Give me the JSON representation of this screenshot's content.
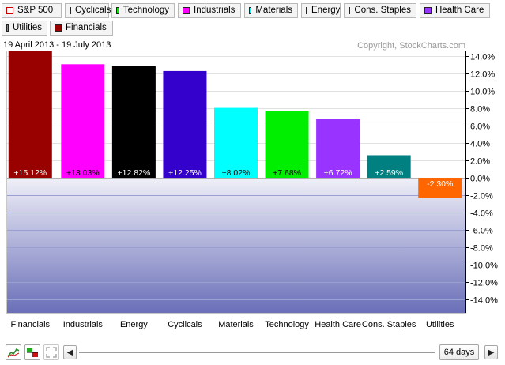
{
  "legend": [
    {
      "label": "S&P 500",
      "color": "#ffffff",
      "border": "#cc0000"
    },
    {
      "label": "Cyclicals",
      "color": "#3300cc",
      "border": "#222222"
    },
    {
      "label": "Technology",
      "color": "#00ee00",
      "border": "#222222"
    },
    {
      "label": "Industrials",
      "color": "#ff00ff",
      "border": "#222222"
    },
    {
      "label": "Materials",
      "color": "#00ffff",
      "border": "#222222"
    },
    {
      "label": "Energy",
      "color": "#000000",
      "border": "#222222"
    },
    {
      "label": "Cons. Staples",
      "color": "#008080",
      "border": "#222222"
    },
    {
      "label": "Health Care",
      "color": "#9933ff",
      "border": "#222222"
    },
    {
      "label": "Utilities",
      "color": "#ff6600",
      "border": "#222222"
    },
    {
      "label": "Financials",
      "color": "#990000",
      "border": "#222222"
    }
  ],
  "chart_data": {
    "type": "bar",
    "title": "",
    "date_range": "19 April 2013 - 19 July 2013",
    "copyright": "Copyright, StockCharts.com",
    "xlabel": "",
    "ylabel": "",
    "ylim": [
      -15.5,
      14.6
    ],
    "yticks": [
      14,
      12,
      10,
      8,
      6,
      4,
      2,
      0,
      -2,
      -4,
      -6,
      -8,
      -10,
      -12,
      -14
    ],
    "ytick_labels": [
      "14.0%",
      "12.0%",
      "10.0%",
      "8.0%",
      "6.0%",
      "4.0%",
      "2.0%",
      "0.0%",
      "-2.0%",
      "-4.0%",
      "-6.0%",
      "-8.0%",
      "-10.0%",
      "-12.0%",
      "-14.0%"
    ],
    "categories": [
      "Financials",
      "Industrials",
      "Energy",
      "Cyclicals",
      "Materials",
      "Technology",
      "Health Care",
      "Cons. Staples",
      "Utilities"
    ],
    "values": [
      15.12,
      13.03,
      12.82,
      12.25,
      8.02,
      7.68,
      6.72,
      2.59,
      -2.3
    ],
    "value_labels": [
      "+15.12%",
      "+13.03%",
      "+12.82%",
      "+12.25%",
      "+8.02%",
      "+7.68%",
      "+6.72%",
      "+2.59%",
      "-2.30%"
    ],
    "colors": [
      "#990000",
      "#ff00ff",
      "#000000",
      "#3300cc",
      "#00ffff",
      "#00ee00",
      "#9933ff",
      "#008080",
      "#ff6600"
    ],
    "grid": true,
    "legend_position": "top"
  },
  "toolbar": {
    "prev_label": "◀",
    "next_label": "▶",
    "days_label": "64 days"
  }
}
